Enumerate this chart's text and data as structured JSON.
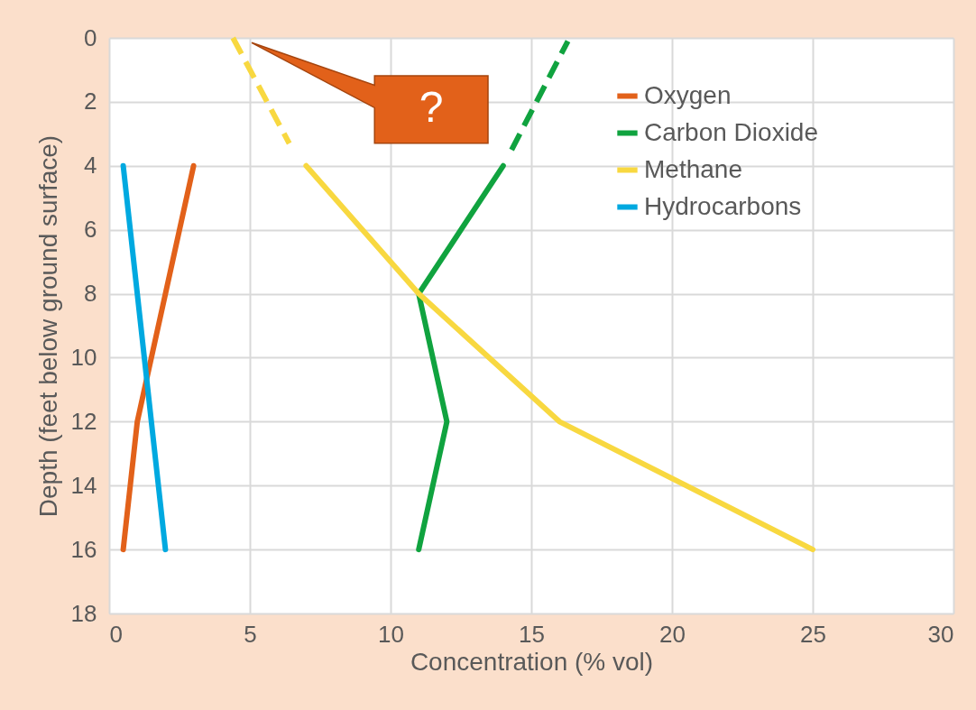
{
  "chart_data": {
    "type": "line",
    "xlabel": "Concentration (% vol)",
    "ylabel": "Depth (feet below ground surface)",
    "xlim": [
      0,
      30
    ],
    "xticks": [
      0,
      5,
      10,
      15,
      20,
      25,
      30
    ],
    "ylim": [
      18,
      0
    ],
    "yticks": [
      0,
      2,
      4,
      6,
      8,
      10,
      12,
      14,
      16,
      18
    ],
    "grid": true,
    "legend": "top right",
    "marker": "none",
    "series": [
      {
        "name": "Oxygen",
        "color": "#e2611a",
        "x": [
          3,
          2,
          1,
          0.5
        ],
        "values": [
          4,
          8,
          12,
          16
        ]
      },
      {
        "name": "Carbon Dioxide",
        "color": "#10a33f",
        "x": [
          14,
          11,
          12,
          11
        ],
        "values": [
          4,
          8,
          12,
          16
        ]
      },
      {
        "name": "Methane",
        "color": "#f8d840",
        "x": [
          7,
          11,
          16,
          25
        ],
        "values": [
          4,
          8,
          12,
          16
        ]
      },
      {
        "name": "Hydrocarbons",
        "color": "#00a9e0",
        "x": [
          0.5,
          1,
          1.5,
          2
        ],
        "values": [
          4,
          8,
          12,
          16
        ]
      },
      {
        "color": "#10a33f",
        "x": [
          14.3,
          16.3
        ],
        "values": [
          3.5,
          0.1
        ],
        "line_style": "dashed"
      },
      {
        "color": "#f8d840",
        "x": [
          4.4,
          6.4
        ],
        "values": [
          0,
          3.3
        ],
        "line_style": "dashed"
      }
    ],
    "annotations": [
      "?"
    ]
  }
}
